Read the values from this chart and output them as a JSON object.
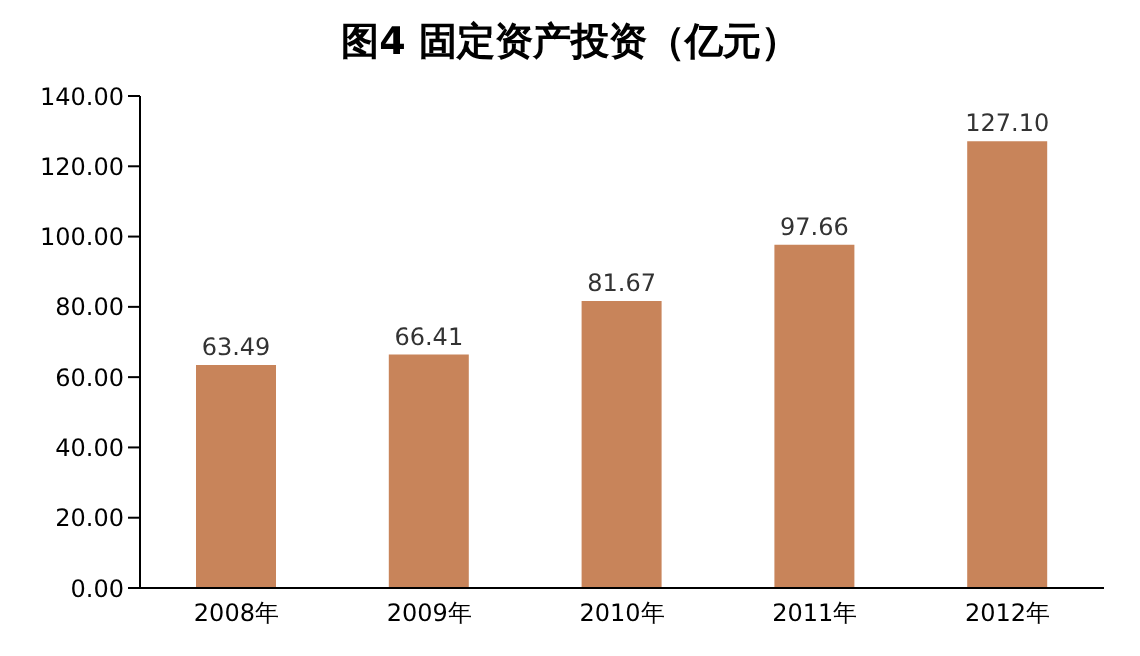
{
  "chart_data": {
    "type": "bar",
    "title": "图4  固定资产投资（亿元）",
    "categories": [
      "2008年",
      "2009年",
      "2010年",
      "2011年",
      "2012年"
    ],
    "values": [
      63.49,
      66.41,
      81.67,
      97.66,
      127.1
    ],
    "value_labels": [
      "63.49",
      "66.41",
      "81.67",
      "97.66",
      "127.10"
    ],
    "color": "#c8845a",
    "ylim": [
      0,
      140
    ],
    "yticks": [
      {
        "value": 0,
        "label": "0.00"
      },
      {
        "value": 20,
        "label": "20.00"
      },
      {
        "value": 40,
        "label": "40.00"
      },
      {
        "value": 60,
        "label": "60.00"
      },
      {
        "value": 80,
        "label": "80.00"
      },
      {
        "value": 100,
        "label": "100.00"
      },
      {
        "value": 120,
        "label": "120.00"
      },
      {
        "value": 140,
        "label": "140.00"
      }
    ],
    "grid": false
  }
}
